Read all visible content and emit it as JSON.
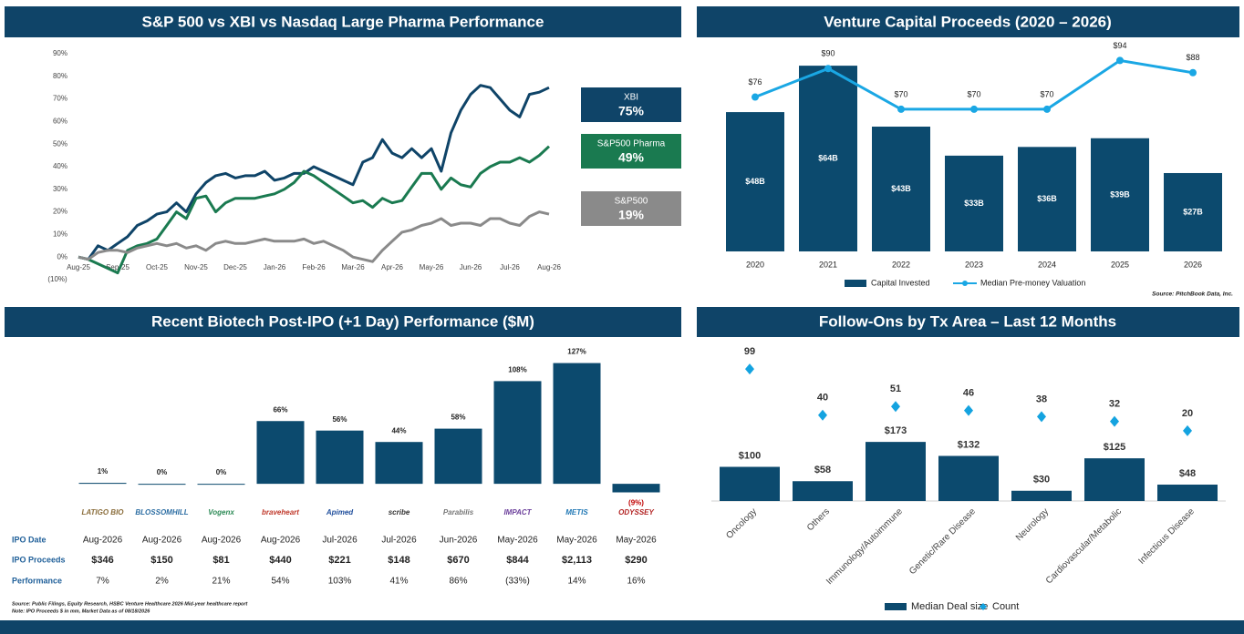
{
  "chart_data": [
    {
      "type": "line",
      "title": "S&P 500 vs XBI vs Nasdaq Large Pharma Performance",
      "categories": [
        "Aug-25",
        null,
        null,
        null,
        "Sep-25",
        null,
        null,
        null,
        "Oct-25",
        null,
        null,
        null,
        "Nov-25",
        null,
        null,
        null,
        "Dec-25",
        null,
        null,
        null,
        "Jan-26",
        null,
        null,
        null,
        "Feb-26",
        null,
        null,
        null,
        "Mar-26",
        null,
        null,
        null,
        "Apr-26",
        null,
        null,
        null,
        "May-26",
        null,
        null,
        null,
        "Jun-26",
        null,
        null,
        null,
        "Jul-26",
        null,
        null,
        null,
        "Aug-26"
      ],
      "ylim": [
        -10,
        90
      ],
      "yticks": [
        {
          "value": -10,
          "label": "(10%)"
        },
        {
          "value": 0,
          "label": "0%"
        },
        {
          "value": 10,
          "label": "10%"
        },
        {
          "value": 20,
          "label": "20%"
        },
        {
          "value": 30,
          "label": "30%"
        },
        {
          "value": 40,
          "label": "40%"
        },
        {
          "value": 50,
          "label": "50%"
        },
        {
          "value": 60,
          "label": "60%"
        },
        {
          "value": 70,
          "label": "70%"
        },
        {
          "value": 80,
          "label": "80%"
        },
        {
          "value": 90,
          "label": "90%"
        }
      ],
      "series": [
        {
          "name": "XBI",
          "color": "#0f4468",
          "end_label": "75%",
          "values": [
            0,
            -1,
            5,
            3,
            6,
            9,
            14,
            16,
            19,
            20,
            24,
            20,
            28,
            33,
            36,
            37,
            35,
            36,
            36,
            38,
            34,
            35,
            37,
            37,
            40,
            38,
            36,
            34,
            32,
            42,
            44,
            52,
            46,
            44,
            48,
            44,
            48,
            38,
            55,
            65,
            72,
            76,
            75,
            70,
            65,
            62,
            72,
            73,
            75
          ]
        },
        {
          "name": "S&P500 Pharma",
          "color": "#1a7a50",
          "end_label": "49%",
          "values": [
            0,
            -1,
            -3,
            -5,
            -7,
            3,
            5,
            6,
            8,
            14,
            20,
            17,
            26,
            27,
            20,
            24,
            26,
            26,
            26,
            27,
            28,
            30,
            33,
            38,
            36,
            33,
            30,
            27,
            24,
            25,
            22,
            26,
            24,
            25,
            31,
            37,
            37,
            30,
            35,
            32,
            31,
            37,
            40,
            42,
            42,
            44,
            42,
            45,
            49
          ]
        },
        {
          "name": "S&P500",
          "color": "#8a8a8a",
          "end_label": "19%",
          "values": [
            0,
            -1,
            2,
            3,
            3,
            2,
            4,
            5,
            6,
            5,
            6,
            4,
            5,
            3,
            6,
            7,
            6,
            6,
            7,
            8,
            7,
            7,
            7,
            8,
            6,
            7,
            5,
            3,
            0,
            -1,
            -2,
            3,
            7,
            11,
            12,
            14,
            15,
            17,
            14,
            15,
            15,
            14,
            17,
            17,
            15,
            14,
            18,
            20,
            19
          ]
        }
      ]
    },
    {
      "type": "bar_line",
      "title": "Venture Capital Proceeds (2020 – 2026)",
      "categories": [
        "2020",
        "2021",
        "2022",
        "2023",
        "2024",
        "2025",
        "2026"
      ],
      "ylim": [
        0,
        70
      ],
      "y2lim": [
        0,
        100
      ],
      "series": [
        {
          "name": "Capital Invested",
          "type": "bar",
          "color": "#0c4a6e",
          "values": [
            48,
            64,
            43,
            33,
            36,
            39,
            27
          ],
          "value_labels": [
            "$48B",
            "$64B",
            "$43B",
            "$33B",
            "$36B",
            "$39B",
            "$27B"
          ]
        },
        {
          "name": "Median Pre-money Valuation",
          "type": "line",
          "axis": "y2",
          "color": "#1aa7e4",
          "values": [
            76,
            90,
            70,
            70,
            70,
            94,
            88
          ],
          "value_labels": [
            "$76",
            "$90",
            "$70",
            "$70",
            "$70",
            "$94",
            "$88"
          ]
        }
      ],
      "source": "Source: PitchBook Data, Inc."
    },
    {
      "type": "bar",
      "title": "Recent Biotech Post-IPO (+1 Day) Performance ($M)",
      "categories": [
        "LATIGO BIO",
        "BLOSSOMHILL",
        "Vogenx",
        "braveheart",
        "Apimed",
        "scribe",
        "Parabilis",
        "IMPACT",
        "METIS",
        "ODYSSEY"
      ],
      "values": [
        1,
        0,
        0,
        66,
        56,
        44,
        58,
        108,
        127,
        -9
      ],
      "value_labels": [
        "1%",
        "0%",
        "0%",
        "66%",
        "56%",
        "44%",
        "58%",
        "108%",
        "127%",
        "(9%)"
      ],
      "color": "#0c4a6e",
      "negative_label_color": "#c00000",
      "ylim": [
        -20,
        140
      ],
      "table": {
        "row_labels": [
          "IPO Date",
          "IPO Proceeds",
          "Performance"
        ],
        "rows": [
          [
            "Aug-2026",
            "Aug-2026",
            "Aug-2026",
            "Aug-2026",
            "Jul-2026",
            "Jul-2026",
            "Jun-2026",
            "May-2026",
            "May-2026",
            "May-2026"
          ],
          [
            "$346",
            "$150",
            "$81",
            "$440",
            "$221",
            "$148",
            "$670",
            "$844",
            "$2,113",
            "$290"
          ],
          [
            "7%",
            "2%",
            "21%",
            "54%",
            "103%",
            "41%",
            "86%",
            "(33%)",
            "14%",
            "16%"
          ]
        ]
      },
      "notes": [
        "Source: Public Filings, Equity Research, HSBC Venture Healthcare 2026 Mid-year healthcare report",
        "Note: IPO Proceeds $ in mm, Market Data as of 08/18/2026"
      ]
    },
    {
      "type": "bar_line",
      "title": "Follow-Ons by Tx Area – Last 12 Months",
      "categories": [
        "Oncology",
        "Others",
        "Immunology/Autoimmune",
        "Genetic/Rare Disease",
        "Neurology",
        "Cardiovascular/Metabolic",
        "Infectious Disease"
      ],
      "ylim": [
        0,
        480
      ],
      "y2lim": [
        -70,
        140
      ],
      "series": [
        {
          "name": "Median Deal size",
          "type": "bar",
          "color": "#0c4a6e",
          "values": [
            100,
            58,
            173,
            132,
            30,
            125,
            48
          ],
          "value_labels": [
            "$100",
            "$58",
            "$173",
            "$132",
            "$30",
            "$125",
            "$48"
          ]
        },
        {
          "name": "Count",
          "type": "marker",
          "axis": "y2",
          "color": "#14a3e0",
          "values": [
            99,
            40,
            51,
            46,
            38,
            32,
            20
          ]
        }
      ]
    }
  ]
}
